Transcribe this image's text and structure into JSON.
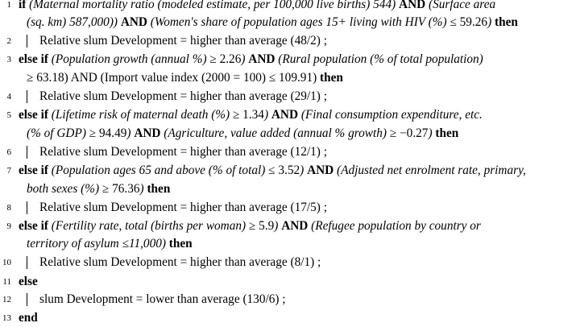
{
  "lines": [
    {
      "n": "1",
      "parts": [
        {
          "t": "if",
          "s": "kw"
        },
        {
          "t": " (Maternal mortality ratio (modeled estimate, per 100,000 live births) 544) ",
          "s": "cond"
        },
        {
          "t": "AND",
          "s": "kw"
        },
        {
          "t": " (Surface area",
          "s": "cond"
        }
      ]
    },
    {
      "n": "",
      "parts": [
        {
          "t": "(sq. km) 587,000)) ",
          "s": "cond"
        },
        {
          "t": "AND",
          "s": "kw"
        },
        {
          "t": " (Women's share of population ages 15+ living with HIV (%) ",
          "s": "cond"
        },
        {
          "t": "≤ 59.26",
          "s": "op"
        },
        {
          "t": ")",
          "s": "cond"
        },
        {
          "t": " then",
          "s": "kw"
        }
      ]
    },
    {
      "n": "2",
      "parts": [
        {
          "t": "Relative slum Development = higher than average (48/2) ;",
          "s": ""
        }
      ]
    },
    {
      "n": "3",
      "parts": [
        {
          "t": "else if",
          "s": "kw"
        },
        {
          "t": " (Population growth (annual %) ",
          "s": "cond"
        },
        {
          "t": "≥ 2.26",
          "s": "op"
        },
        {
          "t": ") ",
          "s": "cond"
        },
        {
          "t": "AND",
          "s": "kw"
        },
        {
          "t": " (Rural population (% of total population)",
          "s": "cond"
        }
      ]
    },
    {
      "n": "",
      "parts": [
        {
          "t": "≥ 63.18) AND (Import value index (2000 = 100) ≤ 109.91) ",
          "s": "op"
        },
        {
          "t": "then",
          "s": "kw"
        }
      ]
    },
    {
      "n": "4",
      "parts": [
        {
          "t": "Relative slum Development = higher than average (29/1) ;",
          "s": ""
        }
      ]
    },
    {
      "n": "5",
      "parts": [
        {
          "t": "else if",
          "s": "kw"
        },
        {
          "t": " (Lifetime risk of maternal death (%) ",
          "s": "cond"
        },
        {
          "t": "≥ 1.34",
          "s": "op"
        },
        {
          "t": ") ",
          "s": "cond"
        },
        {
          "t": "AND",
          "s": "kw"
        },
        {
          "t": " (Final consumption expenditure, etc.",
          "s": "cond"
        }
      ]
    },
    {
      "n": "",
      "parts": [
        {
          "t": "(% of GDP) ",
          "s": "cond"
        },
        {
          "t": "≥ 94.49",
          "s": "op"
        },
        {
          "t": ") ",
          "s": "cond"
        },
        {
          "t": "AND",
          "s": "kw"
        },
        {
          "t": " (Agriculture, value added (annual % growth) ",
          "s": "cond"
        },
        {
          "t": "≥ −0.27",
          "s": "op"
        },
        {
          "t": ")",
          "s": "cond"
        },
        {
          "t": " then",
          "s": "kw"
        }
      ]
    },
    {
      "n": "6",
      "parts": [
        {
          "t": "Relative slum Development = higher than average (12/1) ;",
          "s": ""
        }
      ]
    },
    {
      "n": "7",
      "parts": [
        {
          "t": "else if",
          "s": "kw"
        },
        {
          "t": " (Population ages 65 and above (% of total) ",
          "s": "cond"
        },
        {
          "t": "≤ 3.52",
          "s": "op"
        },
        {
          "t": ") ",
          "s": "cond"
        },
        {
          "t": "AND",
          "s": "kw"
        },
        {
          "t": " (Adjusted net enrolment rate, primary,",
          "s": "cond"
        }
      ]
    },
    {
      "n": "",
      "parts": [
        {
          "t": "both sexes (%) ",
          "s": "cond"
        },
        {
          "t": "≥ 76.36",
          "s": "op"
        },
        {
          "t": ")",
          "s": "cond"
        },
        {
          "t": " then",
          "s": "kw"
        }
      ]
    },
    {
      "n": "8",
      "parts": [
        {
          "t": "Relative slum Development = higher than average (17/5) ;",
          "s": ""
        }
      ]
    },
    {
      "n": "9",
      "parts": [
        {
          "t": "else if",
          "s": "kw"
        },
        {
          "t": " (Fertility rate, total (births per woman) ",
          "s": "cond"
        },
        {
          "t": "≥ 5.9",
          "s": "op"
        },
        {
          "t": ") ",
          "s": "cond"
        },
        {
          "t": "AND",
          "s": "kw"
        },
        {
          "t": " (Refugee population by country or",
          "s": "cond"
        }
      ]
    },
    {
      "n": "",
      "parts": [
        {
          "t": "territory of asylum ≤11,000)",
          "s": "cond"
        },
        {
          "t": " then",
          "s": "kw"
        }
      ]
    },
    {
      "n": "10",
      "parts": [
        {
          "t": "Relative slum Development = higher than average (8/1) ;",
          "s": ""
        }
      ]
    },
    {
      "n": "11",
      "parts": [
        {
          "t": "else",
          "s": "kw"
        }
      ]
    },
    {
      "n": "12",
      "parts": [
        {
          "t": "slum Development = lower than average (130/6) ;",
          "s": ""
        }
      ]
    },
    {
      "n": "13",
      "parts": [
        {
          "t": "end",
          "s": "kw"
        }
      ]
    }
  ]
}
